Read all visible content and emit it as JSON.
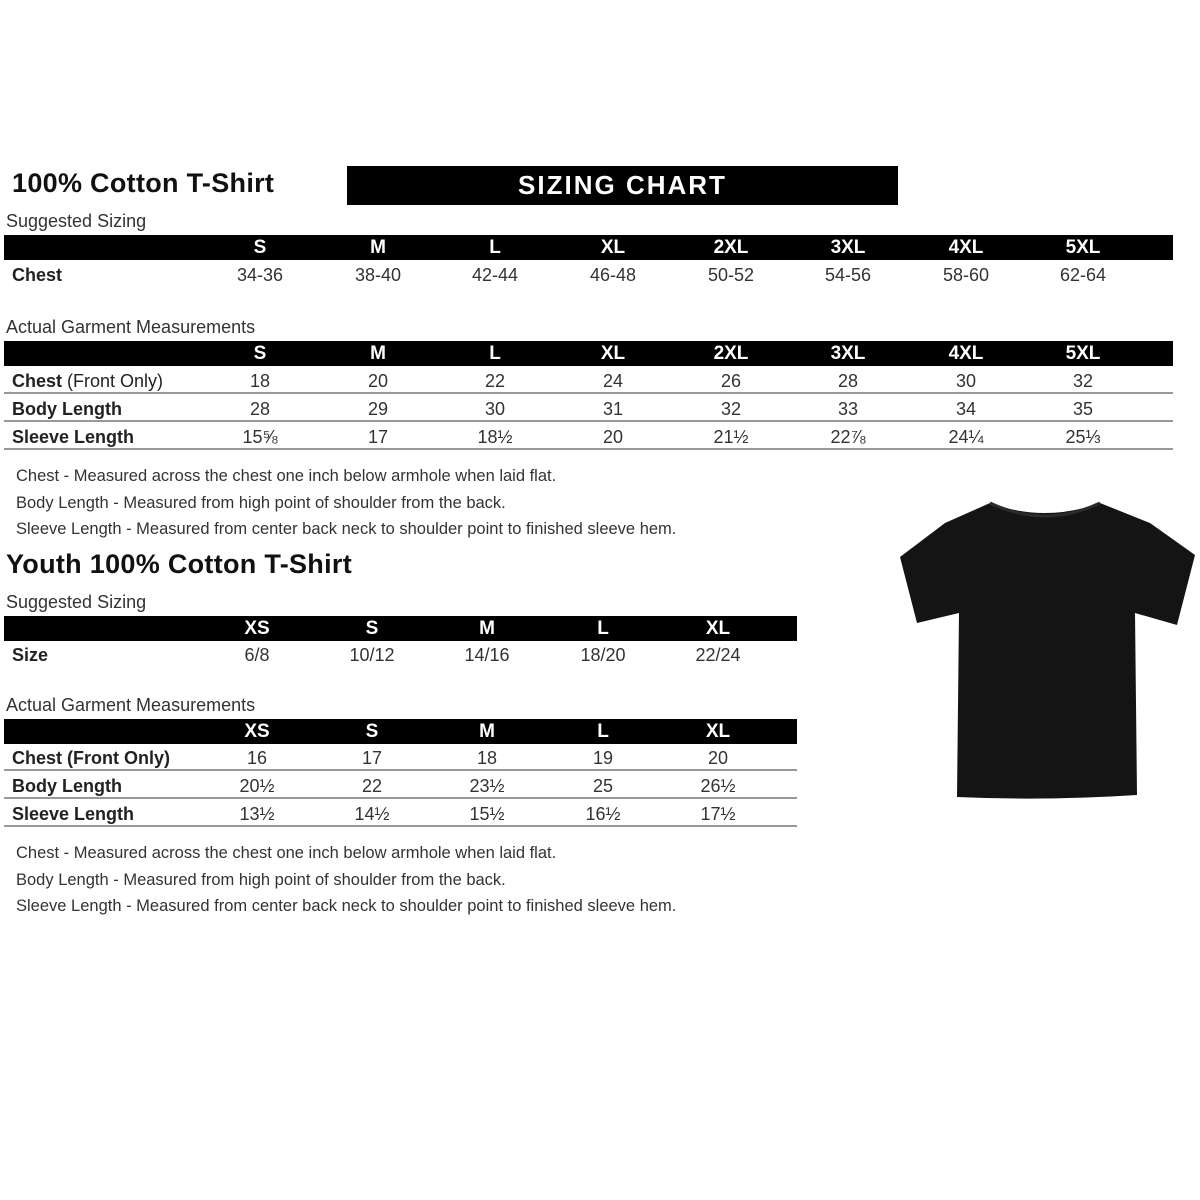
{
  "adult": {
    "title": "100% Cotton T-Shirt",
    "banner": "SIZING CHART",
    "suggested_label": "Suggested Sizing",
    "sizes": [
      "S",
      "M",
      "L",
      "XL",
      "2XL",
      "3XL",
      "4XL",
      "5XL"
    ],
    "suggested_rows": [
      {
        "label": "Chest",
        "values": [
          "34-36",
          "38-40",
          "42-44",
          "46-48",
          "50-52",
          "54-56",
          "58-60",
          "62-64"
        ]
      }
    ],
    "actual_label": "Actual Garment Measurements",
    "actual_rows": [
      {
        "label": "Chest",
        "label_light": " (Front Only)",
        "values": [
          "18",
          "20",
          "22",
          "24",
          "26",
          "28",
          "30",
          "32"
        ]
      },
      {
        "label": "Body Length",
        "label_light": "",
        "values": [
          "28",
          "29",
          "30",
          "31",
          "32",
          "33",
          "34",
          "35"
        ]
      },
      {
        "label": "Sleeve Length",
        "label_light": "",
        "values": [
          "15⅝",
          "17",
          "18½",
          "20",
          "21½",
          "22⅞",
          "24¼",
          "25⅓"
        ]
      }
    ],
    "notes": [
      "Chest - Measured across the chest one inch below armhole when laid flat.",
      "Body Length - Measured from high point of shoulder from the back.",
      "Sleeve Length - Measured from center back neck to shoulder point to finished sleeve hem."
    ]
  },
  "youth": {
    "title": "Youth 100% Cotton T-Shirt",
    "suggested_label": "Suggested Sizing",
    "sizes": [
      "XS",
      "S",
      "M",
      "L",
      "XL"
    ],
    "suggested_rows": [
      {
        "label": "Size",
        "values": [
          "6/8",
          "10/12",
          "14/16",
          "18/20",
          "22/24"
        ]
      }
    ],
    "actual_label": "Actual Garment Measurements",
    "actual_rows": [
      {
        "label": "Chest (Front Only)",
        "label_light": "",
        "values": [
          "16",
          "17",
          "18",
          "19",
          "20"
        ]
      },
      {
        "label": "Body Length",
        "label_light": "",
        "values": [
          "20½",
          "22",
          "23½",
          "25",
          "26½"
        ]
      },
      {
        "label": "Sleeve Length",
        "label_light": "",
        "values": [
          "13½",
          "14½",
          "15½",
          "16½",
          "17½"
        ]
      }
    ],
    "notes": [
      "Chest - Measured across the chest one inch below armhole when laid flat.",
      "Body Length - Measured from high point of shoulder from the back.",
      "Sleeve Length - Measured from center back neck to shoulder point to finished sleeve hem."
    ]
  },
  "image": {
    "name": "black-tshirt",
    "color": "#141414"
  }
}
